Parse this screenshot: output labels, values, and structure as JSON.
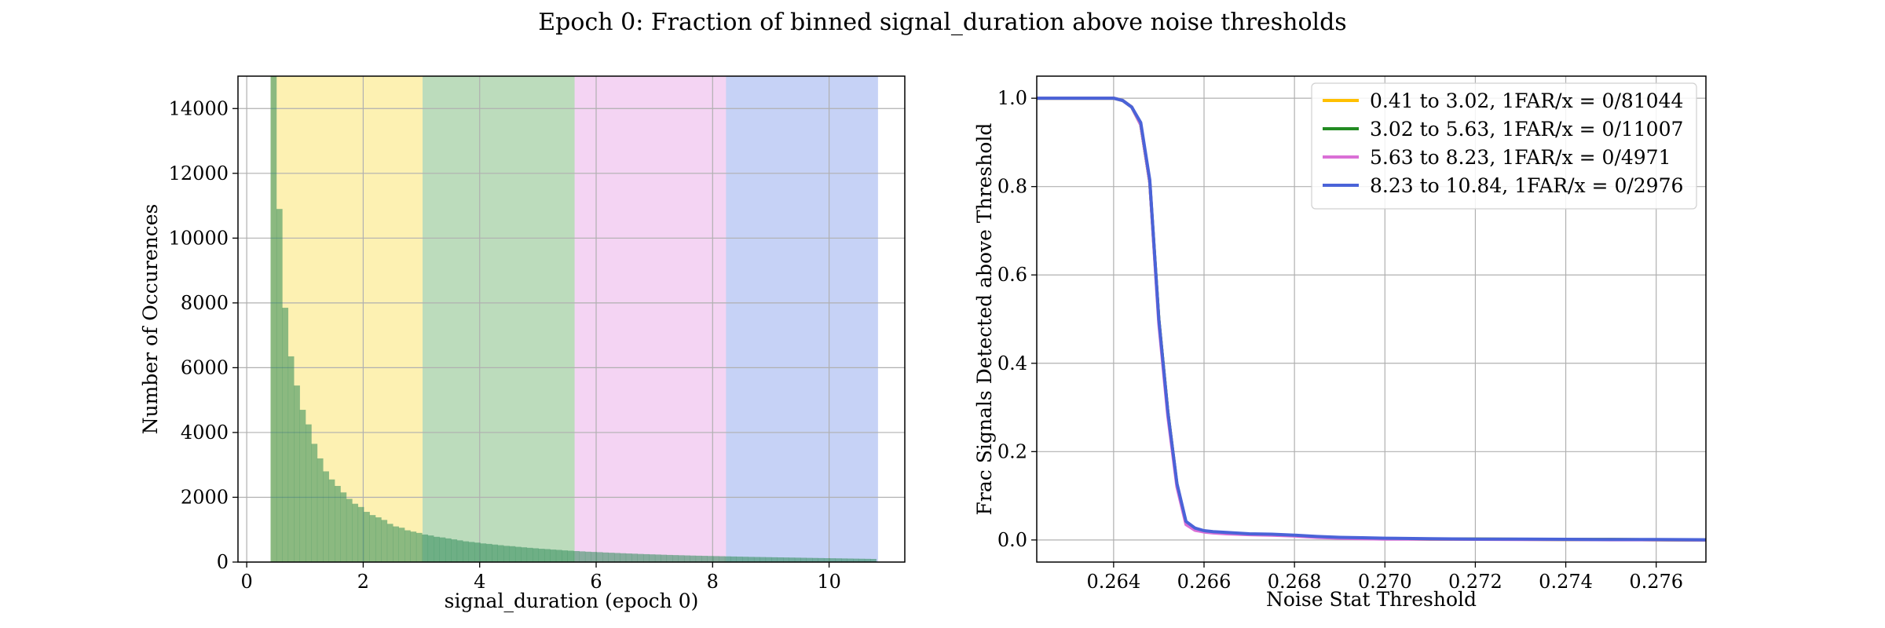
{
  "figure": {
    "title": "Epoch 0: Fraction of binned signal_duration above noise thresholds"
  },
  "chart_data": [
    {
      "type": "bar",
      "subtype": "histogram",
      "xlabel": "signal_duration (epoch 0)",
      "ylabel": "Number of Occurences",
      "xlim": [
        -0.15,
        11.3
      ],
      "ylim": [
        0,
        15000
      ],
      "xticks": [
        0,
        2,
        4,
        6,
        8,
        10
      ],
      "yticks": [
        0,
        2000,
        4000,
        6000,
        8000,
        10000,
        12000,
        14000
      ],
      "grid": true,
      "bin_start": 0.41,
      "bin_width": 0.1,
      "counts": [
        15000,
        10900,
        7850,
        6350,
        5450,
        4700,
        4250,
        3650,
        3200,
        2800,
        2550,
        2350,
        2150,
        1950,
        1800,
        1700,
        1550,
        1450,
        1380,
        1300,
        1180,
        1100,
        1060,
        980,
        940,
        900,
        850,
        820,
        780,
        760,
        730,
        700,
        670,
        640,
        620,
        600,
        575,
        560,
        540,
        520,
        500,
        490,
        470,
        455,
        440,
        425,
        410,
        400,
        385,
        375,
        360,
        350,
        340,
        330,
        320,
        312,
        305,
        295,
        288,
        280,
        272,
        265,
        258,
        250,
        244,
        238,
        232,
        226,
        220,
        215,
        210,
        205,
        200,
        196,
        192,
        188,
        184,
        180,
        176,
        172,
        168,
        164,
        160,
        157,
        154,
        151,
        148,
        145,
        142,
        139,
        136,
        133,
        130,
        127,
        124,
        121,
        118,
        115,
        112,
        109,
        106,
        103,
        100,
        97
      ],
      "bands": [
        {
          "x0": 0.41,
          "x1": 3.02,
          "color": "#f7d000",
          "opacity": 0.3
        },
        {
          "x0": 3.02,
          "x1": 5.63,
          "color": "#228b22",
          "opacity": 0.3
        },
        {
          "x0": 5.63,
          "x1": 8.23,
          "color": "#da70d6",
          "opacity": 0.3
        },
        {
          "x0": 8.23,
          "x1": 10.84,
          "color": "#4169e1",
          "opacity": 0.3
        }
      ],
      "bar_color": "#2e8b57",
      "bar_opacity": 0.55
    },
    {
      "type": "line",
      "xlabel": "Noise Stat Threshold",
      "ylabel": "Frac Signals Detected above Threshold",
      "xlim": [
        0.2623,
        0.2771
      ],
      "ylim": [
        -0.05,
        1.05
      ],
      "xticks": [
        0.264,
        0.266,
        0.268,
        0.27,
        0.272,
        0.274,
        0.276
      ],
      "xtick_labels": [
        "0.264",
        "0.266",
        "0.268",
        "0.270",
        "0.272",
        "0.274",
        "0.276"
      ],
      "yticks": [
        0,
        0.2,
        0.4,
        0.6,
        0.8,
        1.0
      ],
      "ytick_labels": [
        "0.0",
        "0.2",
        "0.4",
        "0.6",
        "0.8",
        "1.0"
      ],
      "grid": true,
      "legend_position": "top-right",
      "series": [
        {
          "name": "0.41 to 3.02, 1FAR/x = 0/81044",
          "color": "#ffc000",
          "x": [
            0.2623,
            0.2635,
            0.264,
            0.2642,
            0.2644,
            0.2646,
            0.2648,
            0.265,
            0.2652,
            0.2654,
            0.2656,
            0.2658,
            0.266,
            0.2662,
            0.2665,
            0.267,
            0.2675,
            0.268,
            0.2685,
            0.269,
            0.2695,
            0.27,
            0.271,
            0.272,
            0.273,
            0.274,
            0.275,
            0.276,
            0.2771
          ],
          "y": [
            1.0,
            1.0,
            1.0,
            0.995,
            0.98,
            0.94,
            0.81,
            0.5,
            0.29,
            0.125,
            0.04,
            0.025,
            0.02,
            0.018,
            0.016,
            0.013,
            0.012,
            0.01,
            0.007,
            0.005,
            0.004,
            0.003,
            0.002,
            0.002,
            0.0015,
            0.001,
            0.001,
            0.0005,
            0.0
          ]
        },
        {
          "name": "3.02 to 5.63, 1FAR/x = 0/11007",
          "color": "#228b22",
          "x": [
            0.2623,
            0.2635,
            0.264,
            0.2642,
            0.2644,
            0.2646,
            0.2648,
            0.265,
            0.2652,
            0.2654,
            0.2656,
            0.2658,
            0.266,
            0.2662,
            0.2665,
            0.267,
            0.2675,
            0.268,
            0.2685,
            0.269,
            0.2695,
            0.27,
            0.271,
            0.272,
            0.273,
            0.274,
            0.275,
            0.276,
            0.2771
          ],
          "y": [
            1.0,
            1.0,
            1.0,
            0.995,
            0.98,
            0.94,
            0.81,
            0.5,
            0.29,
            0.125,
            0.04,
            0.025,
            0.02,
            0.018,
            0.016,
            0.013,
            0.012,
            0.01,
            0.007,
            0.005,
            0.004,
            0.003,
            0.002,
            0.002,
            0.0015,
            0.001,
            0.001,
            0.0005,
            0.0
          ]
        },
        {
          "name": "5.63 to 8.23, 1FAR/x = 0/4971",
          "color": "#da70d6",
          "x": [
            0.2623,
            0.2635,
            0.264,
            0.2642,
            0.2644,
            0.2646,
            0.2648,
            0.265,
            0.2652,
            0.2654,
            0.2656,
            0.2658,
            0.266,
            0.2662,
            0.2665,
            0.267,
            0.2675,
            0.268,
            0.2685,
            0.269,
            0.2695,
            0.27,
            0.271,
            0.272,
            0.273,
            0.274,
            0.275,
            0.276,
            0.2771
          ],
          "y": [
            1.0,
            1.0,
            1.0,
            0.995,
            0.98,
            0.94,
            0.81,
            0.49,
            0.28,
            0.12,
            0.035,
            0.022,
            0.018,
            0.016,
            0.014,
            0.012,
            0.011,
            0.009,
            0.006,
            0.004,
            0.003,
            0.002,
            0.002,
            0.0015,
            0.001,
            0.001,
            0.0005,
            0.0005,
            0.0
          ]
        },
        {
          "name": "8.23 to 10.84, 1FAR/x = 0/2976",
          "color": "#4a63d8",
          "x": [
            0.2623,
            0.2635,
            0.264,
            0.2642,
            0.2644,
            0.2646,
            0.2648,
            0.265,
            0.2652,
            0.2654,
            0.2656,
            0.2658,
            0.266,
            0.2662,
            0.2665,
            0.267,
            0.2675,
            0.268,
            0.2685,
            0.269,
            0.2695,
            0.27,
            0.271,
            0.272,
            0.273,
            0.274,
            0.275,
            0.276,
            0.2771
          ],
          "y": [
            1.0,
            1.0,
            1.0,
            0.995,
            0.98,
            0.945,
            0.815,
            0.5,
            0.29,
            0.128,
            0.042,
            0.027,
            0.021,
            0.019,
            0.017,
            0.014,
            0.013,
            0.011,
            0.008,
            0.006,
            0.005,
            0.004,
            0.003,
            0.002,
            0.002,
            0.0015,
            0.001,
            0.001,
            0.0005
          ]
        }
      ]
    }
  ]
}
